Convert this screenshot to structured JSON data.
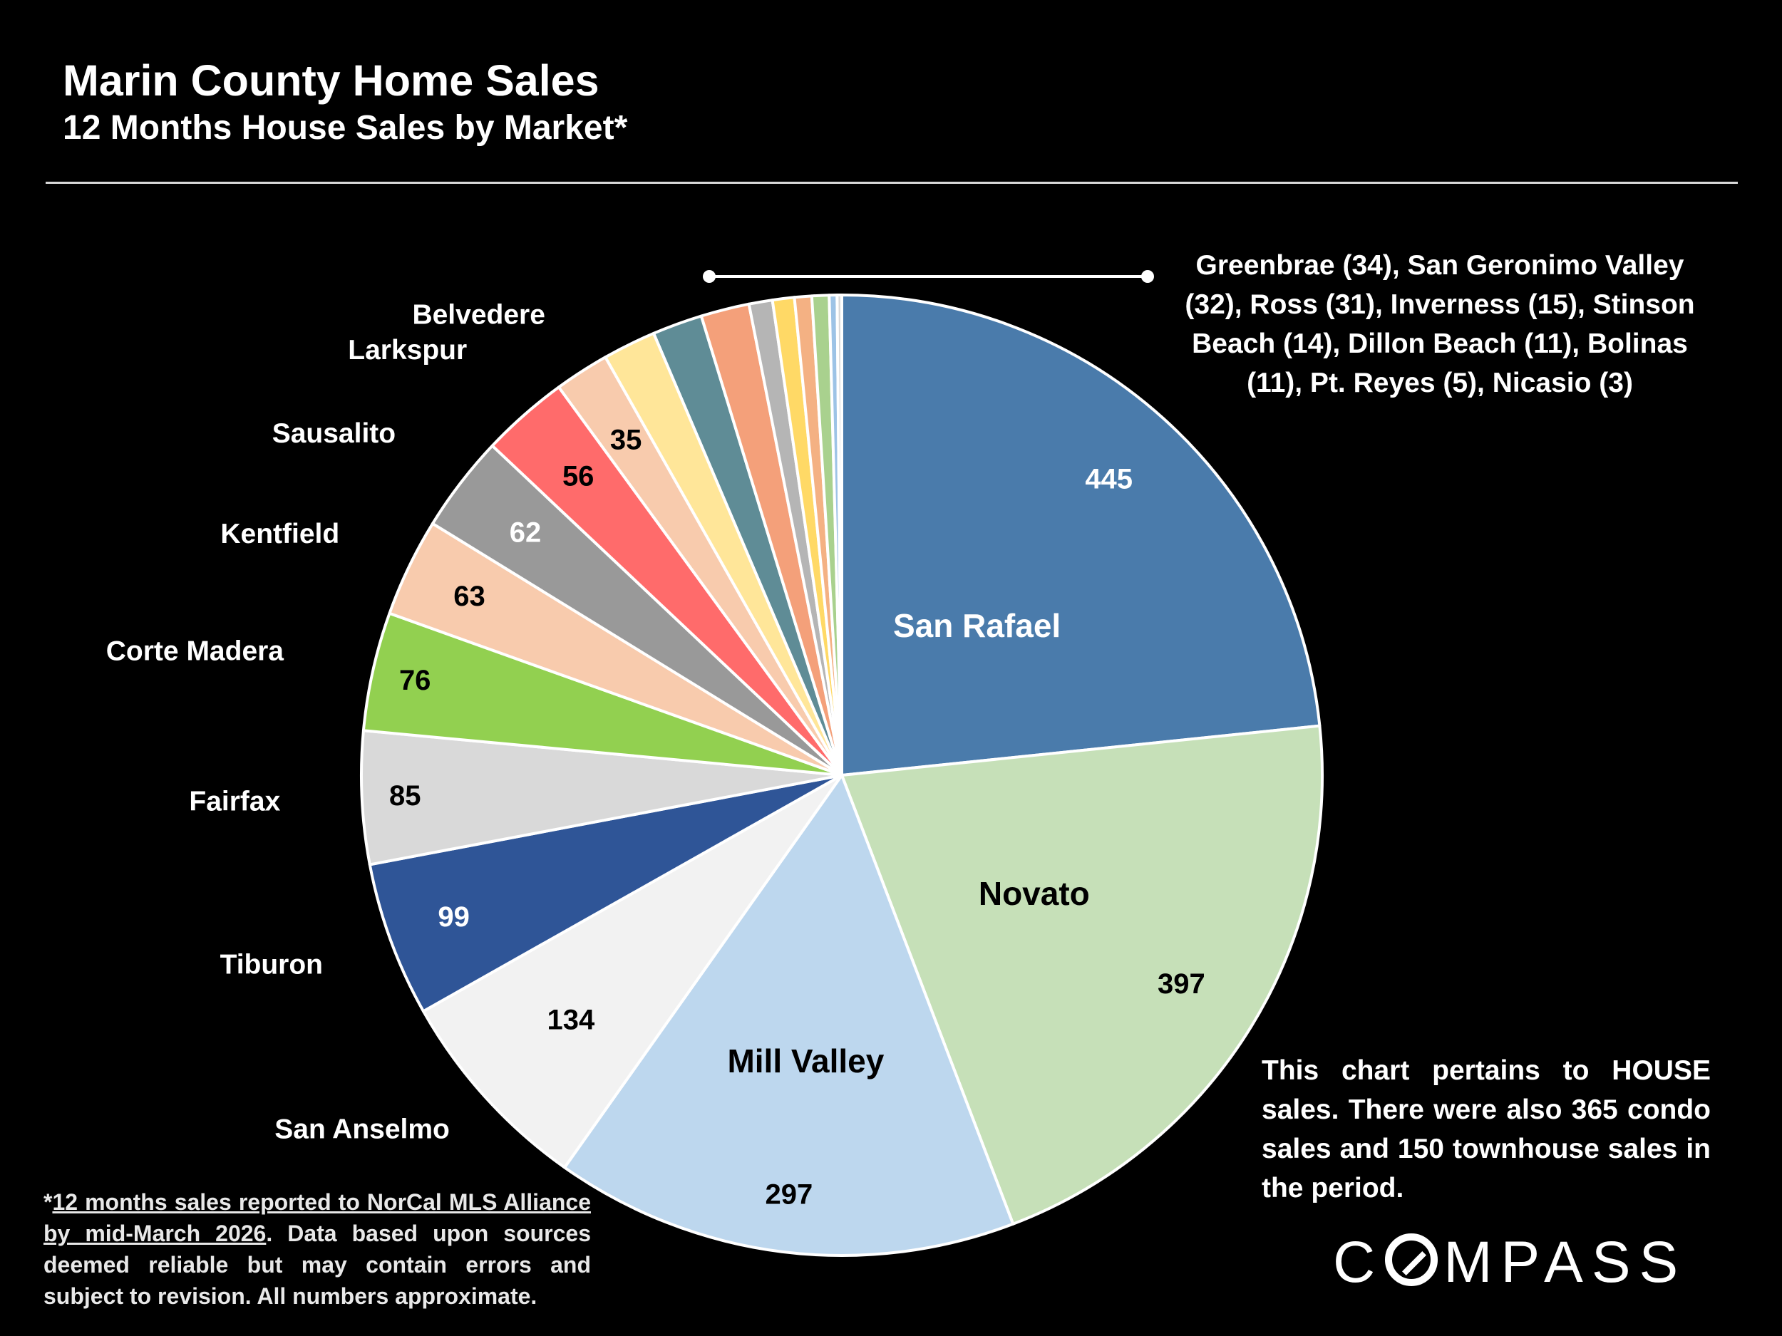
{
  "header": {
    "title": "Marin County Home Sales",
    "subtitle": "12 Months House Sales by Market*"
  },
  "notes": {
    "small_markets": "Greenbrae (34), San Geronimo Valley (32), Ross (31), Inverness (15), Stinson Beach (14), Dillon Beach (11), Bolinas (11), Pt. Reyes (5), Nicasio (3)",
    "house_note": "This chart pertains to HOUSE sales. There were also 365 condo sales and 150 townhouse sales in the period.",
    "footnote_star": "*",
    "footnote_link": "12 months sales reported to NorCal MLS Alliance by mid-March 2026",
    "footnote_rest": ". Data based upon sources deemed reliable but may contain errors and subject to revision. All numbers approximate."
  },
  "logo": {
    "pre": "C",
    "post": "MPASS"
  },
  "chart_data": {
    "type": "pie",
    "title": "Marin County Home Sales",
    "subtitle": "12 Months House Sales by Market*",
    "start_angle_deg": 0,
    "direction": "clockwise",
    "slices": [
      {
        "label": "San Rafael",
        "value": 445,
        "color": "#4a7bab",
        "name_color": "#ffffff",
        "value_color": "#ffffff",
        "name_shown": true
      },
      {
        "label": "Novato",
        "value": 397,
        "color": "#c6e0b8",
        "name_color": "#000000",
        "value_color": "#000000",
        "name_shown": true
      },
      {
        "label": "Mill Valley",
        "value": 297,
        "color": "#bdd7ee",
        "name_color": "#000000",
        "value_color": "#000000",
        "name_shown": true
      },
      {
        "label": "San Anselmo",
        "value": 134,
        "color": "#f2f2f2",
        "name_color": "#ffffff",
        "value_color": "#000000",
        "name_shown": true
      },
      {
        "label": "Tiburon",
        "value": 99,
        "color": "#2f5597",
        "name_color": "#ffffff",
        "value_color": "#ffffff",
        "name_shown": true
      },
      {
        "label": "Fairfax",
        "value": 85,
        "color": "#d9d9d9",
        "name_color": "#ffffff",
        "value_color": "#000000",
        "name_shown": true
      },
      {
        "label": "Corte Madera",
        "value": 76,
        "color": "#92d050",
        "name_color": "#ffffff",
        "value_color": "#000000",
        "name_shown": true
      },
      {
        "label": "Kentfield",
        "value": 63,
        "color": "#f8cbad",
        "name_color": "#ffffff",
        "value_color": "#000000",
        "name_shown": true
      },
      {
        "label": "Sausalito",
        "value": 62,
        "color": "#999999",
        "name_color": "#ffffff",
        "value_color": "#ffffff",
        "name_shown": true
      },
      {
        "label": "Larkspur",
        "value": 56,
        "color": "#ff6b6b",
        "name_color": "#ffffff",
        "value_color": "#000000",
        "name_shown": true
      },
      {
        "label": "Belvedere",
        "value": 35,
        "color": "#f8cbad",
        "name_color": "#ffffff",
        "value_color": "#000000",
        "name_shown": true
      },
      {
        "label": "Greenbrae",
        "value": 34,
        "color": "#ffe699",
        "name_shown": false
      },
      {
        "label": "San Geronimo Valley",
        "value": 32,
        "color": "#5f8c96",
        "name_shown": false
      },
      {
        "label": "Ross",
        "value": 31,
        "color": "#f4a07a",
        "name_shown": false
      },
      {
        "label": "Inverness",
        "value": 15,
        "color": "#b5b5b5",
        "name_shown": false
      },
      {
        "label": "Stinson Beach",
        "value": 14,
        "color": "#ffd966",
        "name_shown": false
      },
      {
        "label": "Dillon Beach",
        "value": 11,
        "color": "#f4b183",
        "name_shown": false
      },
      {
        "label": "Bolinas",
        "value": 11,
        "color": "#a9d18e",
        "name_shown": false
      },
      {
        "label": "Pt. Reyes",
        "value": 5,
        "color": "#9dc3e6",
        "name_shown": false
      },
      {
        "label": "Nicasio",
        "value": 3,
        "color": "#d9d9d9",
        "name_shown": false
      }
    ],
    "legend": "none"
  }
}
